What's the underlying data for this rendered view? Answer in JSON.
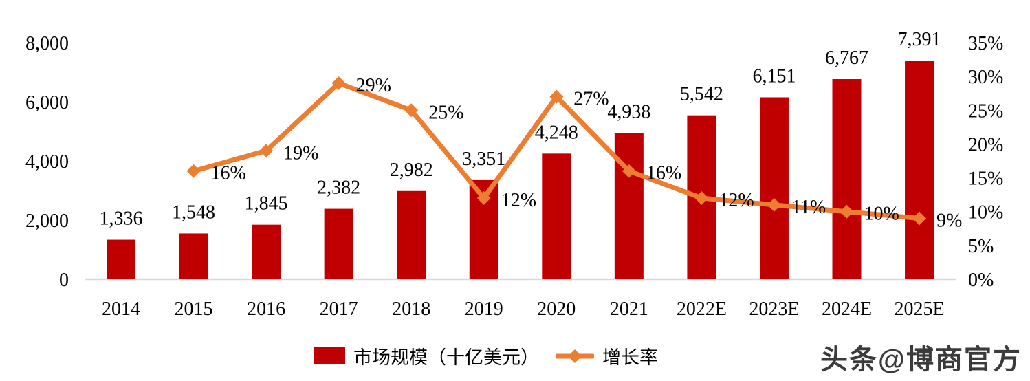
{
  "chart_data": {
    "type": "bar",
    "subtype": "bar-line-combo",
    "categories": [
      "2014",
      "2015",
      "2016",
      "2017",
      "2018",
      "2019",
      "2020",
      "2021",
      "2022E",
      "2023E",
      "2024E",
      "2025E"
    ],
    "series": [
      {
        "name": "市场规模（十亿美元）",
        "type": "bar",
        "color": "#c00000",
        "axis": "left",
        "values": [
          1336,
          1548,
          1845,
          2382,
          2982,
          3351,
          4248,
          4938,
          5542,
          6151,
          6767,
          7391
        ]
      },
      {
        "name": "增长率",
        "type": "line",
        "color": "#ed7d31",
        "marker": "diamond",
        "axis": "right",
        "values": [
          null,
          16,
          19,
          29,
          25,
          12,
          27,
          16,
          12,
          11,
          10,
          9
        ]
      }
    ],
    "title": "",
    "xlabel": "",
    "ylabel": "",
    "left_axis": {
      "min": 0,
      "max": 8000,
      "ticks": [
        0,
        2000,
        4000,
        6000,
        8000
      ]
    },
    "right_axis": {
      "min": 0,
      "max": 35,
      "ticks": [
        0,
        5,
        10,
        15,
        20,
        25,
        30,
        35
      ],
      "suffix": "%"
    },
    "grid": false,
    "data_labels": true,
    "legend_position": "bottom"
  },
  "legend": {
    "bar_label": "市场规模（十亿美元）",
    "line_label": "增长率"
  },
  "watermark": {
    "text": "头条@博商官方"
  },
  "colors": {
    "bar": "#c00000",
    "line": "#ed7d31",
    "axis_line": "#d9d9d9",
    "text": "#000000",
    "watermark": "#3b3b3b"
  }
}
